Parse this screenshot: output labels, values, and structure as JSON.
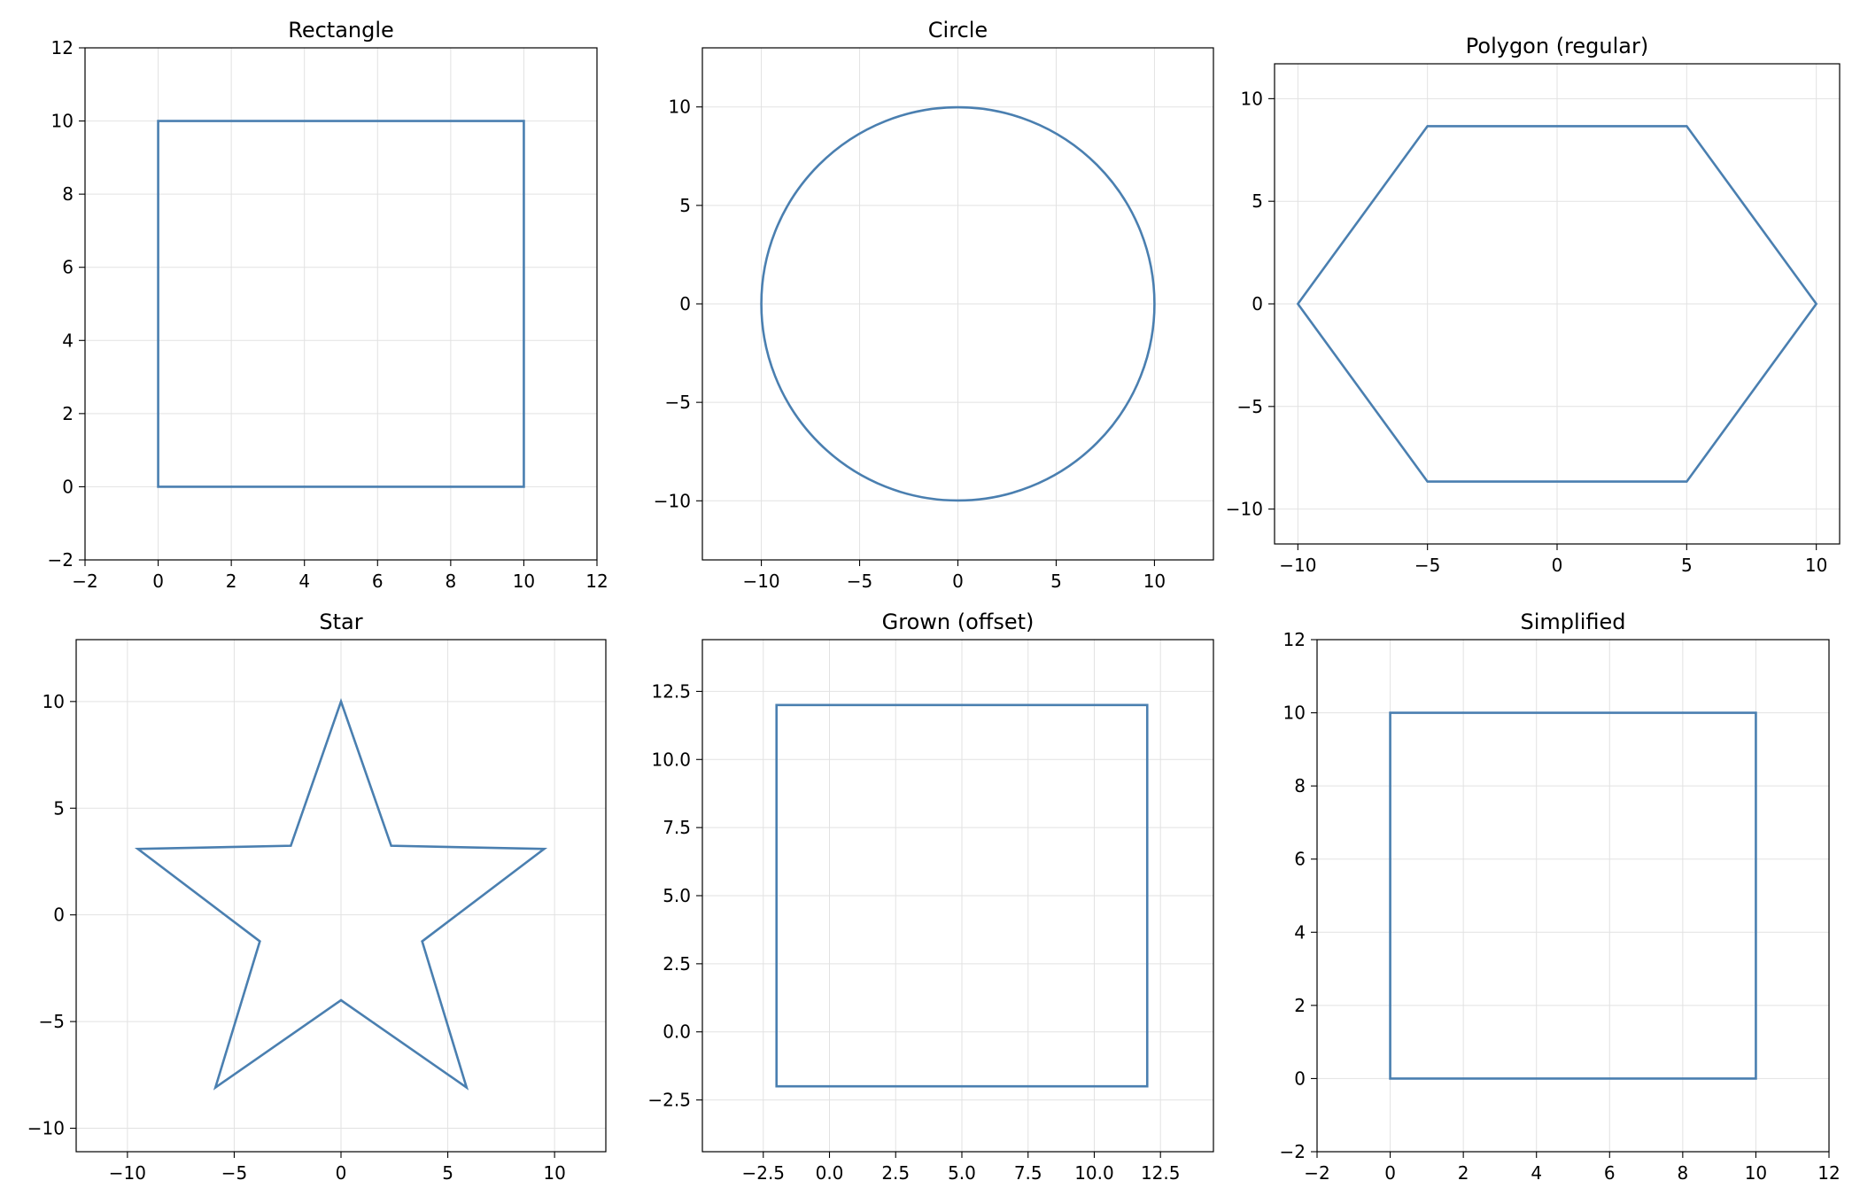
{
  "chart_data": [
    {
      "type": "line",
      "title": "Rectangle",
      "xlabel": "",
      "ylabel": "",
      "xlim": [
        -2,
        12
      ],
      "ylim": [
        -2,
        12
      ],
      "xticks": [
        -2,
        0,
        2,
        4,
        6,
        8,
        10,
        12
      ],
      "yticks": [
        -2,
        0,
        2,
        4,
        6,
        8,
        10,
        12
      ],
      "xtick_labels": [
        "−2",
        "0",
        "2",
        "4",
        "6",
        "8",
        "10",
        "12"
      ],
      "ytick_labels": [
        "−2",
        "0",
        "2",
        "4",
        "6",
        "8",
        "10",
        "12"
      ],
      "grid": true,
      "color": "#4a7fb0",
      "points": [
        [
          0,
          0
        ],
        [
          10,
          0
        ],
        [
          10,
          10
        ],
        [
          0,
          10
        ]
      ]
    },
    {
      "type": "line",
      "title": "Circle",
      "xlabel": "",
      "ylabel": "",
      "xlim": [
        -13,
        13
      ],
      "ylim": [
        -13,
        13
      ],
      "xticks": [
        -10,
        -5,
        0,
        5,
        10
      ],
      "yticks": [
        -10,
        -5,
        0,
        5,
        10
      ],
      "xtick_labels": [
        "−10",
        "−5",
        "0",
        "5",
        "10"
      ],
      "ytick_labels": [
        "−10",
        "−5",
        "0",
        "5",
        "10"
      ],
      "grid": true,
      "color": "#4a7fb0",
      "circle": {
        "cx": 0,
        "cy": 0,
        "r": 10
      }
    },
    {
      "type": "line",
      "title": "Polygon (regular)",
      "xlabel": "",
      "ylabel": "",
      "xlim": [
        -10.9,
        10.9
      ],
      "ylim": [
        -11.7,
        11.7
      ],
      "xticks": [
        -10,
        -5,
        0,
        5,
        10
      ],
      "yticks": [
        -10,
        -5,
        0,
        5,
        10
      ],
      "xtick_labels": [
        "−10",
        "−5",
        "0",
        "5",
        "10"
      ],
      "ytick_labels": [
        "−10",
        "−5",
        "0",
        "5",
        "10"
      ],
      "grid": true,
      "color": "#4a7fb0",
      "points": [
        [
          10,
          0
        ],
        [
          5,
          8.66
        ],
        [
          -5,
          8.66
        ],
        [
          -10,
          0
        ],
        [
          -5,
          -8.66
        ],
        [
          5,
          -8.66
        ]
      ]
    },
    {
      "type": "line",
      "title": "Star",
      "xlabel": "",
      "ylabel": "",
      "xlim": [
        -12.4,
        12.4
      ],
      "ylim": [
        -11.1,
        12.9
      ],
      "xticks": [
        -10,
        -5,
        0,
        5,
        10
      ],
      "yticks": [
        -10,
        -5,
        0,
        5,
        10
      ],
      "xtick_labels": [
        "−10",
        "−5",
        "0",
        "5",
        "10"
      ],
      "ytick_labels": [
        "−10",
        "−5",
        "0",
        "5",
        "10"
      ],
      "grid": true,
      "color": "#4a7fb0",
      "points": [
        [
          0,
          10
        ],
        [
          2.35,
          3.24
        ],
        [
          9.51,
          3.09
        ],
        [
          3.8,
          -1.24
        ],
        [
          5.88,
          -8.09
        ],
        [
          0,
          -4
        ],
        [
          -5.88,
          -8.09
        ],
        [
          -3.8,
          -1.24
        ],
        [
          -9.51,
          3.09
        ],
        [
          -2.35,
          3.24
        ]
      ]
    },
    {
      "type": "line",
      "title": "Grown (offset)",
      "xlabel": "",
      "ylabel": "",
      "xlim": [
        -4.8,
        14.5
      ],
      "ylim": [
        -4.4,
        14.4
      ],
      "xticks": [
        -2.5,
        0,
        2.5,
        5,
        7.5,
        10,
        12.5
      ],
      "yticks": [
        -2.5,
        0,
        2.5,
        5,
        7.5,
        10,
        12.5
      ],
      "xtick_labels": [
        "−2.5",
        "0.0",
        "2.5",
        "5.0",
        "7.5",
        "10.0",
        "12.5"
      ],
      "ytick_labels": [
        "−2.5",
        "0.0",
        "2.5",
        "5.0",
        "7.5",
        "10.0",
        "12.5"
      ],
      "grid": true,
      "color": "#4a7fb0",
      "points": [
        [
          -2,
          -2
        ],
        [
          12,
          -2
        ],
        [
          12,
          12
        ],
        [
          -2,
          12
        ]
      ]
    },
    {
      "type": "line",
      "title": "Simplified",
      "xlabel": "",
      "ylabel": "",
      "xlim": [
        -2,
        12
      ],
      "ylim": [
        -2,
        12
      ],
      "xticks": [
        -2,
        0,
        2,
        4,
        6,
        8,
        10,
        12
      ],
      "yticks": [
        -2,
        0,
        2,
        4,
        6,
        8,
        10,
        12
      ],
      "xtick_labels": [
        "−2",
        "0",
        "2",
        "4",
        "6",
        "8",
        "10",
        "12"
      ],
      "ytick_labels": [
        "−2",
        "0",
        "2",
        "4",
        "6",
        "8",
        "10",
        "12"
      ],
      "grid": true,
      "color": "#4a7fb0",
      "points": [
        [
          0,
          0
        ],
        [
          10,
          0
        ],
        [
          10,
          10
        ],
        [
          0,
          10
        ]
      ]
    }
  ]
}
